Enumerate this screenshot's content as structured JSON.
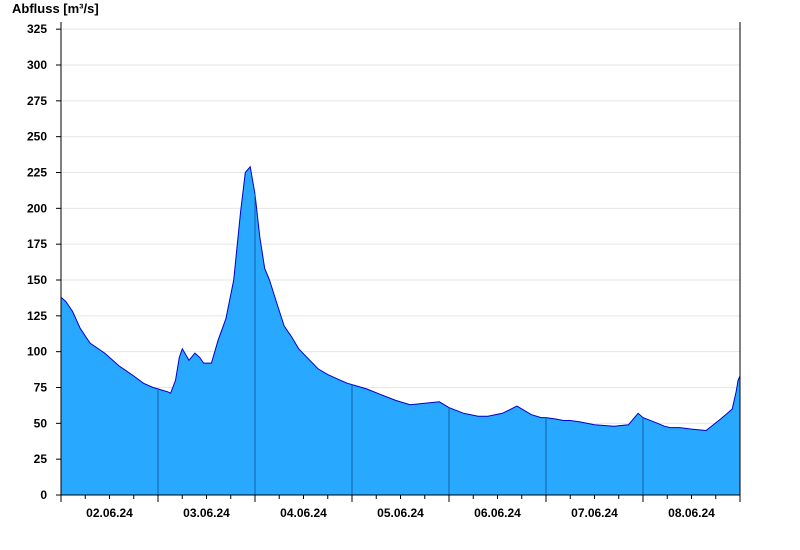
{
  "chart_data": {
    "type": "area",
    "ylabel": "Abfluss [m³/s]",
    "ylim": [
      0,
      330
    ],
    "yticks": [
      0,
      25,
      50,
      75,
      100,
      125,
      150,
      175,
      200,
      225,
      250,
      275,
      300,
      325
    ],
    "xlim": [
      0,
      7
    ],
    "day_labels": [
      "02.06.24",
      "03.06.24",
      "04.06.24",
      "05.06.24",
      "06.06.24",
      "07.06.24",
      "08.06.24"
    ],
    "grid": true,
    "colors": {
      "fill": "#29a8ff",
      "line": "#0000cc",
      "axis": "#000000",
      "grid": "#e6e6e6"
    },
    "series": [
      {
        "x": [
          0,
          0.05,
          0.12,
          0.2,
          0.3,
          0.45,
          0.6,
          0.75,
          0.85,
          0.95,
          1.0,
          1.05,
          1.1,
          1.13,
          1.18,
          1.22,
          1.25,
          1.32,
          1.38,
          1.43,
          1.47,
          1.55,
          1.62,
          1.7,
          1.78,
          1.85,
          1.9,
          1.95,
          2.0,
          2.05,
          2.1,
          2.15,
          2.22,
          2.3,
          2.38,
          2.45,
          2.55,
          2.65,
          2.75,
          2.85,
          2.95,
          3.0,
          3.15,
          3.3,
          3.45,
          3.6,
          3.75,
          3.9,
          4.0,
          4.15,
          4.3,
          4.4,
          4.55,
          4.7,
          4.85,
          4.95,
          5.0,
          5.1,
          5.18,
          5.25,
          5.35,
          5.5,
          5.7,
          5.85,
          5.95,
          6.0,
          6.15,
          6.22,
          6.28,
          6.38,
          6.5,
          6.65,
          6.8,
          6.87,
          6.92,
          6.96,
          6.98,
          7.0
        ],
        "y": [
          138,
          135,
          128,
          116,
          106,
          99,
          90,
          83,
          78,
          75,
          74,
          73,
          72,
          71,
          80,
          96,
          102,
          94,
          99,
          96,
          92,
          92,
          108,
          123,
          150,
          197,
          225,
          229,
          210,
          180,
          158,
          150,
          135,
          118,
          110,
          102,
          95,
          88,
          84,
          81,
          78,
          77,
          74,
          70,
          66,
          63,
          64,
          65,
          61,
          57,
          55,
          55,
          57,
          62,
          56,
          54,
          54,
          53,
          52,
          52,
          51,
          49,
          48,
          49,
          57,
          54,
          50,
          48,
          47,
          47,
          46,
          45,
          53,
          57,
          60,
          72,
          80,
          83
        ]
      }
    ]
  }
}
